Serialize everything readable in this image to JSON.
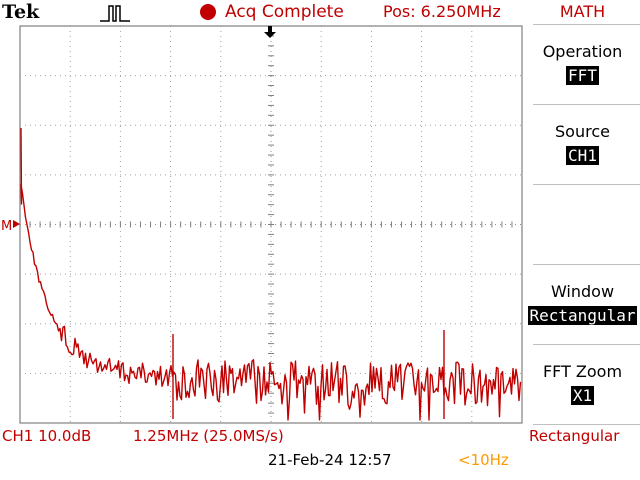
{
  "header": {
    "brand": "Tek",
    "trigger_icon": "trigger-pulse-icon",
    "status": "Acq Complete",
    "position": "Pos: 6.250MHz"
  },
  "menu": {
    "title": "MATH",
    "items": [
      {
        "label": "Operation",
        "value": "FFT"
      },
      {
        "label": "Source",
        "value": "CH1"
      },
      {
        "label": "Window",
        "value": "Rectangular"
      },
      {
        "label": "FFT Zoom",
        "value": "X1"
      }
    ]
  },
  "footer": {
    "channel_scale": "CH1 10.0dB",
    "freq_scale": "1.25MHz (25.0MS/s)",
    "window": "Rectangular",
    "datetime": "21-Feb-24 12:57",
    "trigger_freq": "<10Hz"
  },
  "markers": {
    "math_ref": "M"
  },
  "colors": {
    "trace": "#c00000",
    "accent_red": "#c00000",
    "accent_orange": "#ff9900",
    "grid": "#808080"
  }
}
